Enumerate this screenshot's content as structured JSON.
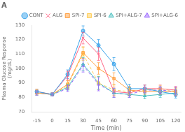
{
  "chart_data": {
    "type": "line",
    "title": "A",
    "x_label": "Time (min)",
    "y_label": "Plasma Glucose Response\n(mg/dL)",
    "x": [
      -15,
      0,
      15,
      30,
      45,
      60,
      75,
      90,
      105,
      120
    ],
    "series": [
      {
        "name": "CONT",
        "values": [
          84,
          82,
          96,
          126,
          116,
          103,
          86,
          86,
          84,
          82
        ],
        "errors": [
          1.5,
          1.0,
          3.0,
          3.5,
          4.0,
          4.5,
          3.0,
          2.5,
          2.5,
          2.5
        ],
        "marker": "circle",
        "line_style": "solid"
      },
      {
        "name": "ALG",
        "values": [
          84,
          82,
          95,
          121,
          110,
          84,
          83,
          86,
          86,
          85
        ],
        "errors": [
          1.5,
          1.0,
          3.0,
          4.0,
          4.5,
          3.0,
          2.0,
          2.5,
          2.5,
          2.5
        ],
        "marker": "x",
        "line_style": "solid"
      },
      {
        "name": "SPI-7",
        "values": [
          83,
          82,
          89,
          111,
          100,
          93,
          85,
          84,
          84,
          84
        ],
        "errors": [
          1.5,
          1.0,
          2.5,
          4.0,
          4.0,
          4.0,
          2.5,
          2.0,
          2.0,
          2.5
        ],
        "marker": "square",
        "line_style": "solid"
      },
      {
        "name": "SPI-6",
        "values": [
          84,
          82,
          88,
          110,
          90,
          85,
          84,
          85,
          86,
          84
        ],
        "errors": [
          1.5,
          1.0,
          2.5,
          4.5,
          4.5,
          3.5,
          2.0,
          2.0,
          2.0,
          2.5
        ],
        "marker": "square",
        "line_style": "dashed"
      },
      {
        "name": "SPI+ALG-7",
        "values": [
          83,
          82,
          87,
          103,
          90,
          83,
          82,
          81,
          82,
          83
        ],
        "errors": [
          1.5,
          1.0,
          2.0,
          4.5,
          4.5,
          3.0,
          2.0,
          2.0,
          2.0,
          2.5
        ],
        "marker": "triangle",
        "line_style": "solid"
      },
      {
        "name": "SPI+ALG-6",
        "values": [
          83,
          82,
          86,
          102,
          89,
          83,
          82,
          85,
          85,
          84
        ],
        "errors": [
          1.5,
          1.0,
          2.0,
          4.5,
          4.5,
          3.0,
          2.0,
          2.0,
          2.5,
          3.0
        ],
        "marker": "triangle",
        "line_style": "dashed"
      }
    ],
    "xlim": [
      -20,
      125
    ],
    "xticks": [
      -15,
      0,
      15,
      30,
      45,
      60,
      75,
      90,
      105,
      120
    ],
    "ylim": [
      70,
      130
    ],
    "yticks": [
      70,
      80,
      90,
      100,
      110,
      120,
      130
    ],
    "grid": false,
    "legend": "upper right"
  }
}
